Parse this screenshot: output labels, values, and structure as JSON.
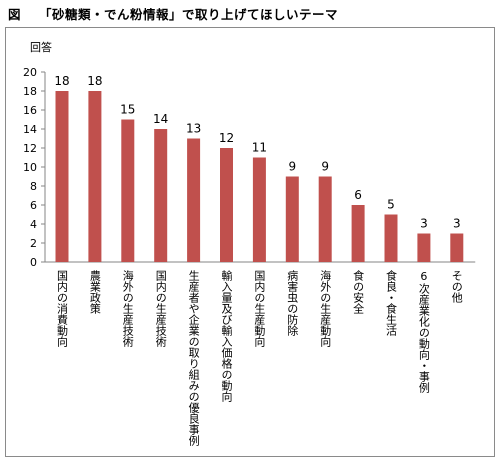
{
  "figure": {
    "label": "図",
    "title": "「砂糖類・でん粉情報」で取り上げてほしいテーマ"
  },
  "chart_data": {
    "type": "bar",
    "ylabel": "回答",
    "ylim": [
      0,
      20
    ],
    "yticks": [
      0,
      2,
      4,
      6,
      8,
      10,
      12,
      14,
      16,
      18,
      20
    ],
    "grid": false,
    "categories": [
      "国内の消費動向",
      "農業政策",
      "海外の生産技術",
      "国内の生産技術",
      "生産者や企業の取り組みの優良事例",
      "輸入量及び輸入価格の動向",
      "国内の生産動向",
      "病害虫の防除",
      "海外の生産動向",
      "食の安全",
      "食良・食生活",
      "6次産業化の動向・事例",
      "その他"
    ],
    "values": [
      18,
      18,
      15,
      14,
      13,
      12,
      11,
      9,
      9,
      6,
      5,
      3,
      3
    ],
    "bar_color": "#c0504d"
  }
}
